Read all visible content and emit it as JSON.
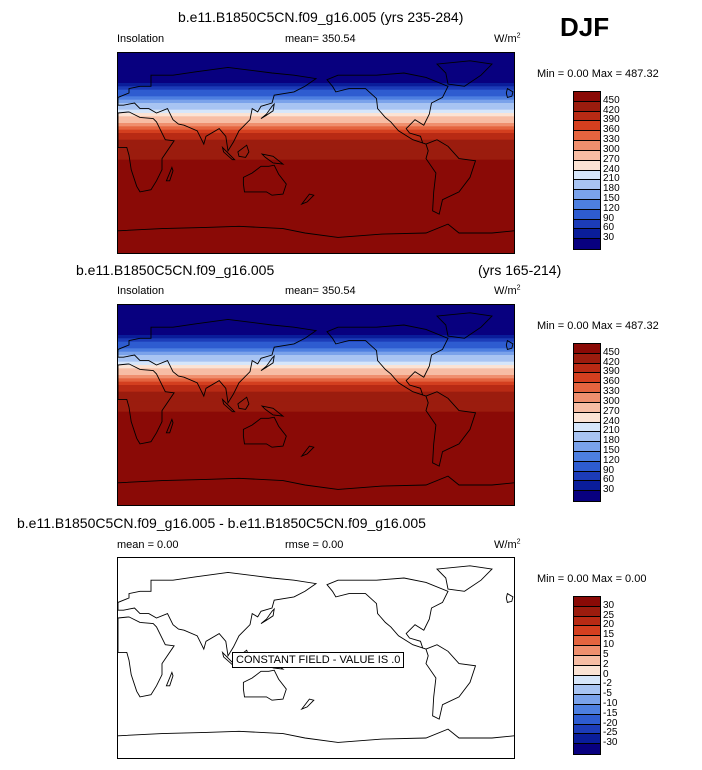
{
  "season": "DJF",
  "panels": [
    {
      "title": "b.e11.B1850C5CN.f09_g16.005 (yrs 235-284)",
      "variable": "Insolation",
      "stat": "mean= 350.54",
      "unit_base": "W/m",
      "unit_exp": "2",
      "minmax": "Min =   0.00 Max = 487.32"
    },
    {
      "title": "b.e11.B1850C5CN.f09_g16.005",
      "title_right": "(yrs 165-214)",
      "variable": "Insolation",
      "stat": "mean= 350.54",
      "unit_base": "W/m",
      "unit_exp": "2",
      "minmax": "Min =   0.00 Max = 487.32"
    },
    {
      "title": "b.e11.B1850C5CN.f09_g16.005 - b.e11.B1850C5CN.f09_g16.005",
      "stat_left": "mean =   0.00",
      "stat": "rmse =   0.00",
      "unit_base": "W/m",
      "unit_exp": "2",
      "minmax": "Min =   0.00 Max =   0.00",
      "note": "CONSTANT FIELD - VALUE IS .0"
    }
  ],
  "chart_data": [
    {
      "type": "heatmap",
      "title": "b.e11.B1850C5CN.f09_g16.005 (yrs 235-284)",
      "variable": "Insolation",
      "units": "W/m2",
      "mean": 350.54,
      "min": 0.0,
      "max": 487.32,
      "levels": [
        30,
        60,
        90,
        120,
        150,
        180,
        210,
        240,
        270,
        300,
        330,
        360,
        390,
        420,
        450
      ],
      "colors": [
        "#08007f",
        "#0a1d9a",
        "#1c3cb8",
        "#2e5cd0",
        "#4d7fe0",
        "#7aa2ea",
        "#a8c4f2",
        "#d6e6fa",
        "#fbe3d4",
        "#f7bda4",
        "#ef8f6e",
        "#e4643f",
        "#d43f1f",
        "#b82a14",
        "#9b1c0e",
        "#8a0a06"
      ],
      "lat_bands": [
        {
          "lat_from": 90,
          "lat_to": 70,
          "value": 0
        },
        {
          "lat_from": 70,
          "lat_to": 60,
          "value": 50
        },
        {
          "lat_from": 60,
          "lat_to": 50,
          "value": 130
        },
        {
          "lat_from": 50,
          "lat_to": 40,
          "value": 230
        },
        {
          "lat_from": 40,
          "lat_to": 30,
          "value": 310
        },
        {
          "lat_from": 30,
          "lat_to": 10,
          "value": 400
        },
        {
          "lat_from": 10,
          "lat_to": -90,
          "value": 470
        }
      ]
    },
    {
      "type": "heatmap",
      "title": "b.e11.B1850C5CN.f09_g16.005 (yrs 165-214)",
      "variable": "Insolation",
      "units": "W/m2",
      "mean": 350.54,
      "min": 0.0,
      "max": 487.32,
      "levels": [
        30,
        60,
        90,
        120,
        150,
        180,
        210,
        240,
        270,
        300,
        330,
        360,
        390,
        420,
        450
      ],
      "colors": [
        "#08007f",
        "#0a1d9a",
        "#1c3cb8",
        "#2e5cd0",
        "#4d7fe0",
        "#7aa2ea",
        "#a8c4f2",
        "#d6e6fa",
        "#fbe3d4",
        "#f7bda4",
        "#ef8f6e",
        "#e4643f",
        "#d43f1f",
        "#b82a14",
        "#9b1c0e",
        "#8a0a06"
      ]
    },
    {
      "type": "heatmap",
      "title": "b.e11.B1850C5CN.f09_g16.005 - b.e11.B1850C5CN.f09_g16.005",
      "units": "W/m2",
      "mean": 0.0,
      "rmse": 0.0,
      "min": 0.0,
      "max": 0.0,
      "levels": [
        -30,
        -25,
        -20,
        -15,
        -10,
        -5,
        -2,
        0,
        2,
        5,
        10,
        15,
        20,
        25,
        30
      ],
      "colors": [
        "#08007f",
        "#0a1d9a",
        "#1c3cb8",
        "#2e5cd0",
        "#4d7fe0",
        "#7aa2ea",
        "#a8c4f2",
        "#d6e6fa",
        "#fbe3d4",
        "#f7bda4",
        "#ef8f6e",
        "#e4643f",
        "#d43f1f",
        "#b82a14",
        "#9b1c0e",
        "#8a0a06"
      ]
    }
  ],
  "colorbars": [
    {
      "labels": [
        "450",
        "420",
        "390",
        "360",
        "330",
        "300",
        "270",
        "240",
        "210",
        "180",
        "150",
        "120",
        "90",
        "60",
        "30"
      ]
    },
    {
      "labels": [
        "450",
        "420",
        "390",
        "360",
        "330",
        "300",
        "270",
        "240",
        "210",
        "180",
        "150",
        "120",
        "90",
        "60",
        "30"
      ]
    },
    {
      "labels": [
        "30",
        "25",
        "20",
        "15",
        "10",
        "5",
        "2",
        "0",
        "-2",
        "-5",
        "-10",
        "-15",
        "-20",
        "-25",
        "-30"
      ]
    }
  ]
}
